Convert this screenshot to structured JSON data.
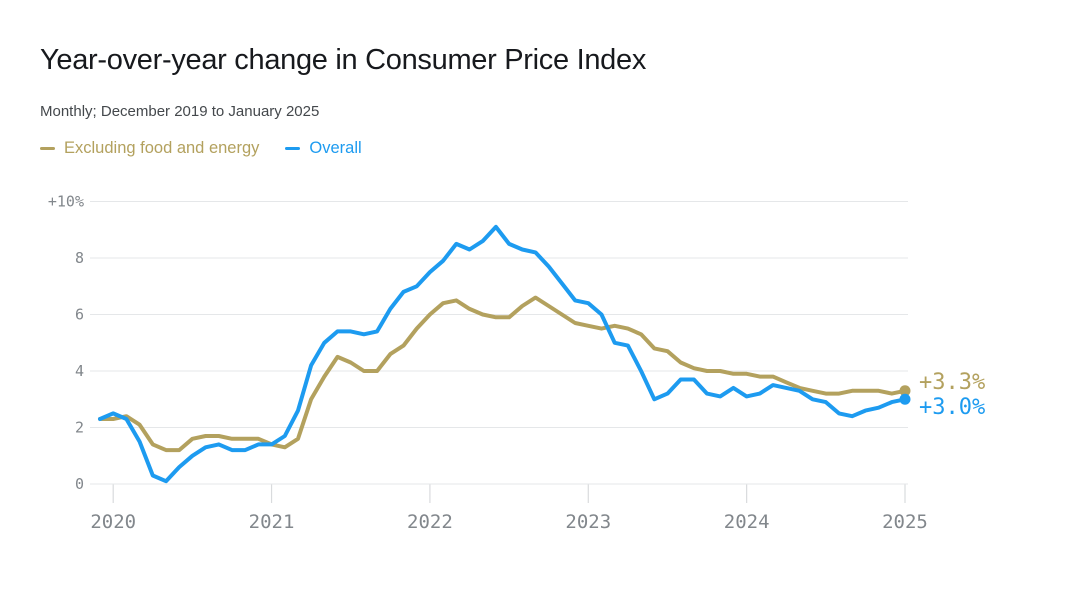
{
  "header": {
    "title": "Year-over-year change in Consumer Price Index",
    "subtitle": "Monthly; December 2019 to January 2025"
  },
  "chart_data": {
    "type": "line",
    "title": "Year-over-year change in Consumer Price Index",
    "subtitle": "Monthly; December 2019 to January 2025",
    "x_unit": "month",
    "x_range": [
      "December 2019",
      "January 2025"
    ],
    "ylim": [
      0,
      10
    ],
    "grid": "horizontal",
    "legend_position": "top-left",
    "colors": {
      "grid": "#e5e7e9",
      "tick": "#d9dbdd",
      "axis_label": "#82878c"
    },
    "y_ticks": [
      {
        "value": 10,
        "label": "+10%"
      },
      {
        "value": 8,
        "label": "8"
      },
      {
        "value": 6,
        "label": "6"
      },
      {
        "value": 4,
        "label": "4"
      },
      {
        "value": 2,
        "label": "2"
      },
      {
        "value": 0,
        "label": "0"
      }
    ],
    "x_ticks": [
      {
        "month_index": 1,
        "label": "2020"
      },
      {
        "month_index": 13,
        "label": "2021"
      },
      {
        "month_index": 25,
        "label": "2022"
      },
      {
        "month_index": 37,
        "label": "2023"
      },
      {
        "month_index": 49,
        "label": "2024"
      },
      {
        "month_index": 61,
        "label": "2025"
      }
    ],
    "series": [
      {
        "id": "excluding-food-and-energy",
        "name": "Excluding food and energy",
        "color": "#b3a15e",
        "end_label": "+3.3%",
        "values": [
          2.3,
          2.3,
          2.4,
          2.1,
          1.4,
          1.2,
          1.2,
          1.6,
          1.7,
          1.7,
          1.6,
          1.6,
          1.6,
          1.4,
          1.3,
          1.6,
          3.0,
          3.8,
          4.5,
          4.3,
          4.0,
          4.0,
          4.6,
          4.9,
          5.5,
          6.0,
          6.4,
          6.5,
          6.2,
          6.0,
          5.9,
          5.9,
          6.3,
          6.6,
          6.3,
          6.0,
          5.7,
          5.6,
          5.5,
          5.6,
          5.5,
          5.3,
          4.8,
          4.7,
          4.3,
          4.1,
          4.0,
          4.0,
          3.9,
          3.9,
          3.8,
          3.8,
          3.6,
          3.4,
          3.3,
          3.2,
          3.2,
          3.3,
          3.3,
          3.3,
          3.2,
          3.3
        ]
      },
      {
        "id": "overall",
        "name": "Overall",
        "color": "#1d9bf0",
        "end_label": "+3.0%",
        "values": [
          2.3,
          2.5,
          2.3,
          1.5,
          0.3,
          0.1,
          0.6,
          1.0,
          1.3,
          1.4,
          1.2,
          1.2,
          1.4,
          1.4,
          1.7,
          2.6,
          4.2,
          5.0,
          5.4,
          5.4,
          5.3,
          5.4,
          6.2,
          6.8,
          7.0,
          7.5,
          7.9,
          8.5,
          8.3,
          8.6,
          9.1,
          8.5,
          8.3,
          8.2,
          7.7,
          7.1,
          6.5,
          6.4,
          6.0,
          5.0,
          4.9,
          4.0,
          3.0,
          3.2,
          3.7,
          3.7,
          3.2,
          3.1,
          3.4,
          3.1,
          3.2,
          3.5,
          3.4,
          3.3,
          3.0,
          2.9,
          2.5,
          2.4,
          2.6,
          2.7,
          2.9,
          3.0
        ]
      }
    ]
  }
}
